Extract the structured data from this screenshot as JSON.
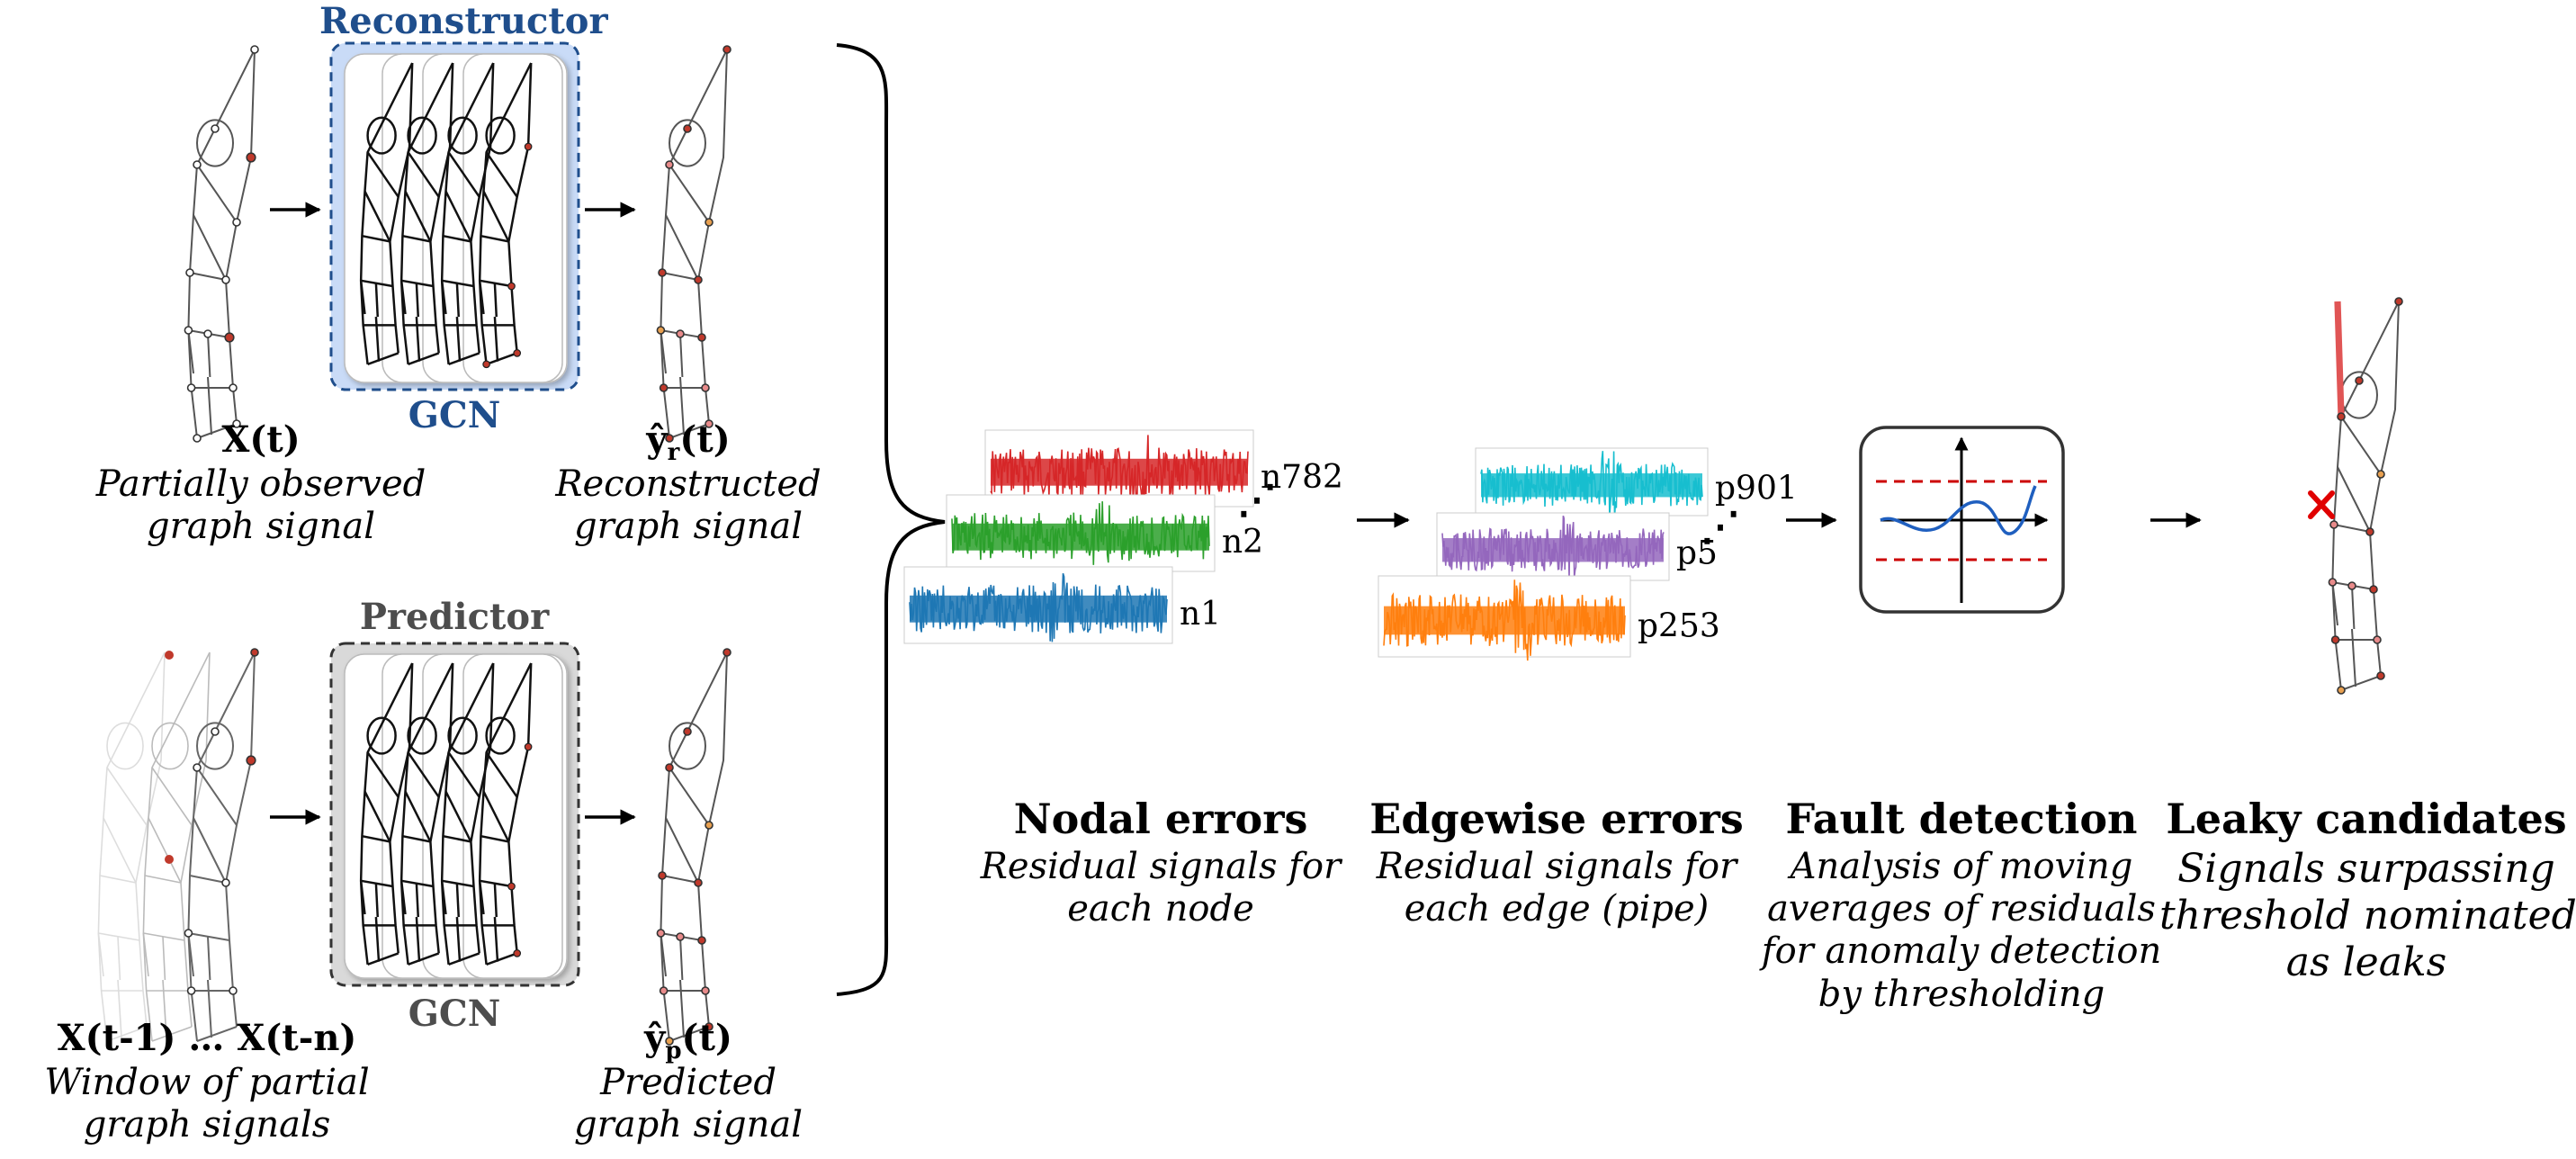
{
  "reconstructor": {
    "title": "Reconstructor",
    "model": "GCN",
    "input_symbol": "X(t)",
    "input_desc_1": "Partially observed",
    "input_desc_2": "graph signal",
    "output_symbol_base": "ŷ",
    "output_symbol_sub": "r",
    "output_symbol_tail": "(t)",
    "output_desc_1": "Reconstructed",
    "output_desc_2": "graph signal"
  },
  "predictor": {
    "title": "Predictor",
    "model": "GCN",
    "input_symbol": "X(t-1) … X(t-n)",
    "input_desc_1": "Window of partial",
    "input_desc_2": "graph signals",
    "output_symbol_base": "ŷ",
    "output_symbol_sub": "p",
    "output_symbol_tail": "(t)",
    "output_desc_1": "Predicted",
    "output_desc_2": "graph signal"
  },
  "nodal": {
    "title": "Nodal errors",
    "desc_1": "Residual signals for",
    "desc_2": "each node",
    "series": [
      {
        "label": "n782",
        "color": "#d62728"
      },
      {
        "label": "n2",
        "color": "#2ca02c"
      },
      {
        "label": "n1",
        "color": "#1f77b4"
      }
    ]
  },
  "edgewise": {
    "title": "Edgewise errors",
    "desc_1": "Residual signals for",
    "desc_2": "each edge (pipe)",
    "series": [
      {
        "label": "p901",
        "color": "#17becf"
      },
      {
        "label": "p5",
        "color": "#9467bd"
      },
      {
        "label": "p253",
        "color": "#ff7f0e"
      }
    ]
  },
  "fault": {
    "title": "Fault detection",
    "desc_1": "Analysis of moving",
    "desc_2": "averages of residuals",
    "desc_3": "for anomaly detection",
    "desc_4": "by thresholding"
  },
  "leaky": {
    "title": "Leaky candidates",
    "desc_1": "Signals surpassing",
    "desc_2": "threshold nominated",
    "desc_3": "as leaks"
  },
  "colors": {
    "reconstructor_title": "#1f4e8c",
    "reconstructor_fill": "#c9dbf7",
    "predictor_title": "#4d4d4d",
    "predictor_fill": "#d9d9d9",
    "node_red": "#c0392b",
    "node_pink": "#e88a8a",
    "node_orange": "#e8a050",
    "leak_edge": "#e05555",
    "leak_mark": "#e00000",
    "threshold": "#cc0000",
    "moving_average": "#1f5fbf"
  },
  "icons": [
    "arrow-right-icon",
    "curly-brace-icon",
    "cross-mark-icon",
    "threshold-plot-icon"
  ]
}
